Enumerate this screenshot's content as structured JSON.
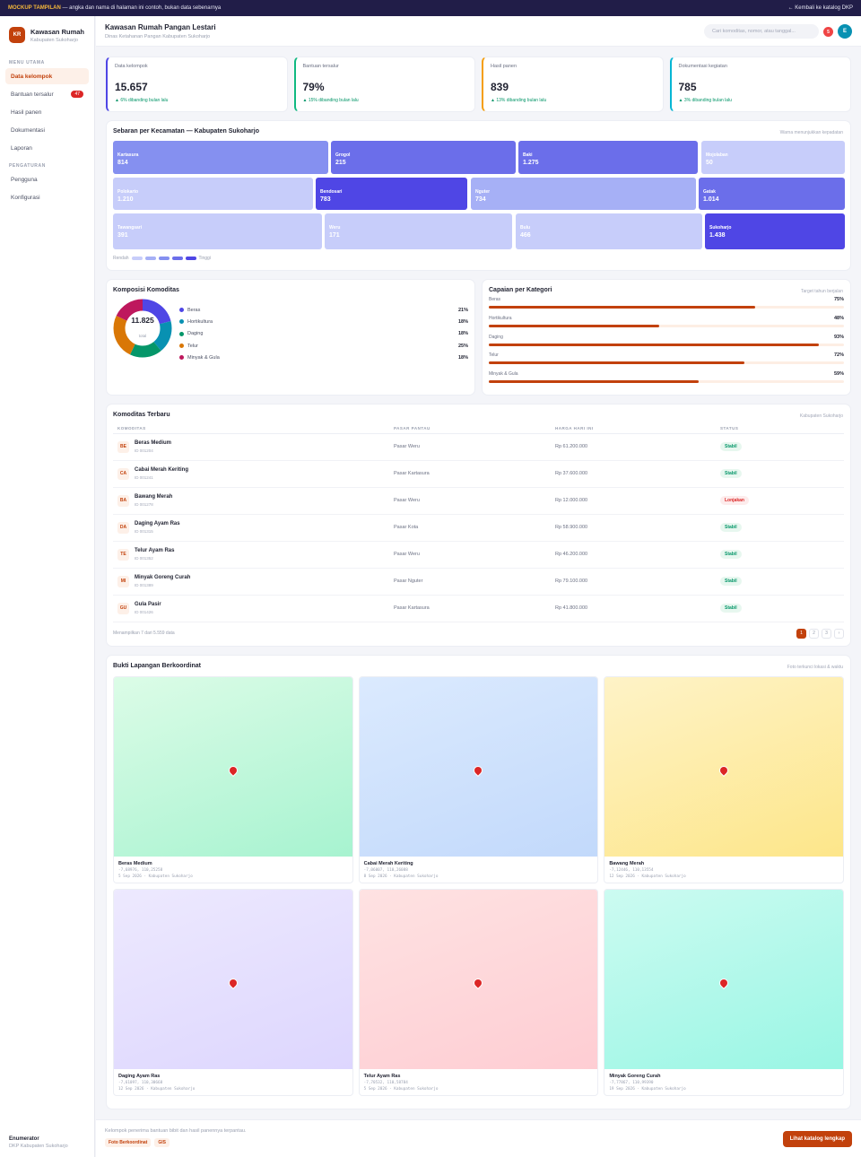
{
  "banner": {
    "tag": "MOCKUP TAMPILAN",
    "text": " — angka dan nama di halaman ini contoh, bukan data sebenarnya",
    "back_link": "← Kembali ke katalog DKP"
  },
  "brand": {
    "initials": "KR",
    "title": "Kawasan Rumah",
    "subtitle": "Kabupaten Sukoharjo"
  },
  "nav": {
    "section_main": "MENU UTAMA",
    "items_main": [
      {
        "label": "Data kelompok",
        "active": true
      },
      {
        "label": "Bantuan tersalur",
        "badge": "47"
      },
      {
        "label": "Hasil panen"
      },
      {
        "label": "Dokumentasi"
      },
      {
        "label": "Laporan"
      }
    ],
    "section_settings": "PENGATURAN",
    "items_settings": [
      {
        "label": "Pengguna"
      },
      {
        "label": "Konfigurasi"
      }
    ]
  },
  "user": {
    "role": "Enumerator",
    "org": "DKP Kabupaten Sukoharjo",
    "avatar": "E",
    "notif": "5"
  },
  "header": {
    "title": "Kawasan Rumah Pangan Lestari",
    "subtitle": "Dinas Ketahanan Pangan Kabupaten Sukoharjo",
    "search_placeholder": "Cari komoditas, nomor, atau tanggal..."
  },
  "kpis": [
    {
      "label": "Data kelompok",
      "value": "15.657",
      "delta": "▲ 6% dibanding bulan lalu",
      "color": "#4f46e5"
    },
    {
      "label": "Bantuan tersalur",
      "value": "79%",
      "delta": "▲ 15% dibanding bulan lalu",
      "color": "#10b981"
    },
    {
      "label": "Hasil panen",
      "value": "839",
      "delta": "▲ 13% dibanding bulan lalu",
      "color": "#f59e0b"
    },
    {
      "label": "Dokumentasi kegiatan",
      "value": "785",
      "delta": "▲ 3% dibanding bulan lalu",
      "color": "#06b6d4"
    }
  ],
  "treemap": {
    "title": "Sebaran per Kecamatan — Kabupaten Sukoharjo",
    "note": "Warna menunjukkan kepadatan",
    "rows": [
      [
        {
          "name": "Kartasura",
          "value": "814",
          "level": 2
        },
        {
          "name": "Grogol",
          "value": "215",
          "level": 3
        },
        {
          "name": "Baki",
          "value": "1.275",
          "level": 3
        },
        {
          "name": "Mojolaban",
          "value": "50",
          "level": 0
        }
      ],
      [
        {
          "name": "Polokarto",
          "value": "1.210",
          "level": 0
        },
        {
          "name": "Bendosari",
          "value": "783",
          "level": 4
        },
        {
          "name": "Nguter",
          "value": "734",
          "level": 1
        },
        {
          "name": "Gatak",
          "value": "1.014",
          "level": 3
        }
      ],
      [
        {
          "name": "Tawangsari",
          "value": "391",
          "level": 0
        },
        {
          "name": "Weru",
          "value": "171",
          "level": 0
        },
        {
          "name": "Bulu",
          "value": "466",
          "level": 0
        },
        {
          "name": "Sukoharjo",
          "value": "1.438",
          "level": 4
        }
      ]
    ],
    "legend_low": "Rendah",
    "legend_high": "Tinggi",
    "scale_colors": [
      "#c7cdfa",
      "#a6b0f6",
      "#8590f0",
      "#6b6eea",
      "#4f46e5"
    ]
  },
  "composition": {
    "title": "Komposisi Komoditas",
    "total": "11.825",
    "total_label": "total",
    "items": [
      {
        "label": "Beras",
        "pct": "21%",
        "value": 21,
        "color": "#4f46e5"
      },
      {
        "label": "Hortikultura",
        "pct": "18%",
        "value": 18,
        "color": "#0891b2"
      },
      {
        "label": "Daging",
        "pct": "18%",
        "value": 18,
        "color": "#059669"
      },
      {
        "label": "Telur",
        "pct": "25%",
        "value": 25,
        "color": "#d97706"
      },
      {
        "label": "Minyak & Gula",
        "pct": "18%",
        "value": 18,
        "color": "#be185d"
      }
    ]
  },
  "achievement": {
    "title": "Capaian per Kategori",
    "note": "Target tahun berjalan",
    "items": [
      {
        "label": "Beras",
        "pct": "75%",
        "value": 75
      },
      {
        "label": "Hortikultura",
        "pct": "48%",
        "value": 48
      },
      {
        "label": "Daging",
        "pct": "93%",
        "value": 93
      },
      {
        "label": "Telur",
        "pct": "72%",
        "value": 72
      },
      {
        "label": "Minyak & Gula",
        "pct": "59%",
        "value": 59
      }
    ]
  },
  "commodities": {
    "title": "Komoditas Terbaru",
    "note": "Kabupaten Sukoharjo",
    "headers": [
      "KOMODITAS",
      "PASAR PANTAU",
      "HARGA HARI INI",
      "STATUS"
    ],
    "rows": [
      {
        "code": "BE",
        "name": "Beras Medium",
        "id": "ID 001204",
        "market": "Pasar Weru",
        "price": "Rp 61.200.000",
        "status": "Stabil",
        "kind": "ok"
      },
      {
        "code": "CA",
        "name": "Cabai Merah Keriting",
        "id": "ID 001241",
        "market": "Pasar Kartasura",
        "price": "Rp 37.600.000",
        "status": "Stabil",
        "kind": "ok"
      },
      {
        "code": "BA",
        "name": "Bawang Merah",
        "id": "ID 001278",
        "market": "Pasar Weru",
        "price": "Rp 12.000.000",
        "status": "Lonjakan",
        "kind": "up"
      },
      {
        "code": "DA",
        "name": "Daging Ayam Ras",
        "id": "ID 001315",
        "market": "Pasar Kota",
        "price": "Rp 58.900.000",
        "status": "Stabil",
        "kind": "ok"
      },
      {
        "code": "TE",
        "name": "Telur Ayam Ras",
        "id": "ID 001352",
        "market": "Pasar Weru",
        "price": "Rp 46.200.000",
        "status": "Stabil",
        "kind": "ok"
      },
      {
        "code": "MI",
        "name": "Minyak Goreng Curah",
        "id": "ID 001389",
        "market": "Pasar Nguter",
        "price": "Rp 79.100.000",
        "status": "Stabil",
        "kind": "ok"
      },
      {
        "code": "GU",
        "name": "Gula Pasir",
        "id": "ID 001426",
        "market": "Pasar Kartasura",
        "price": "Rp 41.800.000",
        "status": "Stabil",
        "kind": "ok"
      }
    ],
    "footer": "Menampilkan 7 dari 5.559 data",
    "pages": [
      "1",
      "2",
      "3",
      "›"
    ]
  },
  "gallery": {
    "title": "Bukti Lapangan Berkoordinat",
    "note": "Foto terkunci lokasi & waktu",
    "items": [
      {
        "title": "Beras Medium",
        "coords": "-7,68976, 110,25258",
        "meta": "5 Sep 2026 · Kabupaten Sukoharjo",
        "c1": "#dcfce7",
        "c2": "#a7f3d0"
      },
      {
        "title": "Cabai Merah Keriting",
        "coords": "-7,06007, 110,26088",
        "meta": "8 Sep 2026 · Kabupaten Sukoharjo",
        "c1": "#dbeafe",
        "c2": "#c2d9fb"
      },
      {
        "title": "Bawang Merah",
        "coords": "-7,12446, 110,13554",
        "meta": "12 Sep 2026 · Kabupaten Sukoharjo",
        "c1": "#fef3c7",
        "c2": "#fde68a"
      },
      {
        "title": "Daging Ayam Ras",
        "coords": "-7,61097, 110,30668",
        "meta": "12 Sep 2026 · Kabupaten Sukoharjo",
        "c1": "#ede9fe",
        "c2": "#ddd6fe"
      },
      {
        "title": "Telur Ayam Ras",
        "coords": "-7,70532, 110,58784",
        "meta": "5 Sep 2026 · Kabupaten Sukoharjo",
        "c1": "#fee2e2",
        "c2": "#fecdd3"
      },
      {
        "title": "Minyak Goreng Curah",
        "coords": "-7,77867, 110,99390",
        "meta": "19 Sep 2026 · Kabupaten Sukoharjo",
        "c1": "#ccfbf1",
        "c2": "#99f6e4"
      }
    ]
  },
  "footer": {
    "desc": "Kelompok penerima bantuan bibit dan hasil panennya terpantau.",
    "chips": [
      "Foto Berkoordinat",
      "GIS"
    ],
    "cta": "Lihat katalog lengkap"
  }
}
